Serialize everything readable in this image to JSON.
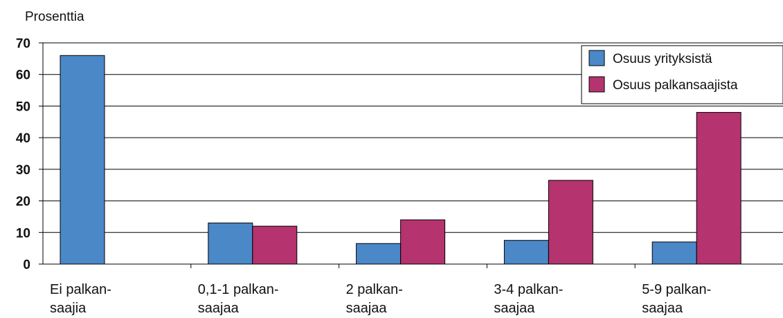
{
  "chart_data": {
    "type": "bar",
    "ylabel": "Prosenttia",
    "ylim": [
      0,
      70
    ],
    "yticks": [
      0,
      10,
      20,
      30,
      40,
      50,
      60,
      70
    ],
    "grid": true,
    "legend_position": "top-right",
    "categories": [
      [
        "Ei palkan-",
        "saajia"
      ],
      [
        "0,1-1 palkan-",
        "saajaa"
      ],
      [
        "2 palkan-",
        "saajaa"
      ],
      [
        "3-4 palkan-",
        "saajaa"
      ],
      [
        "5-9 palkan-",
        "saajaa"
      ]
    ],
    "series": [
      {
        "name": "Osuus yrityksistä",
        "color": "#4a88c8",
        "values": [
          66,
          13,
          6.5,
          7.5,
          7
        ]
      },
      {
        "name": "Osuus palkansaajista",
        "color": "#b5336e",
        "values": [
          null,
          12,
          14,
          26.5,
          48
        ]
      }
    ]
  }
}
